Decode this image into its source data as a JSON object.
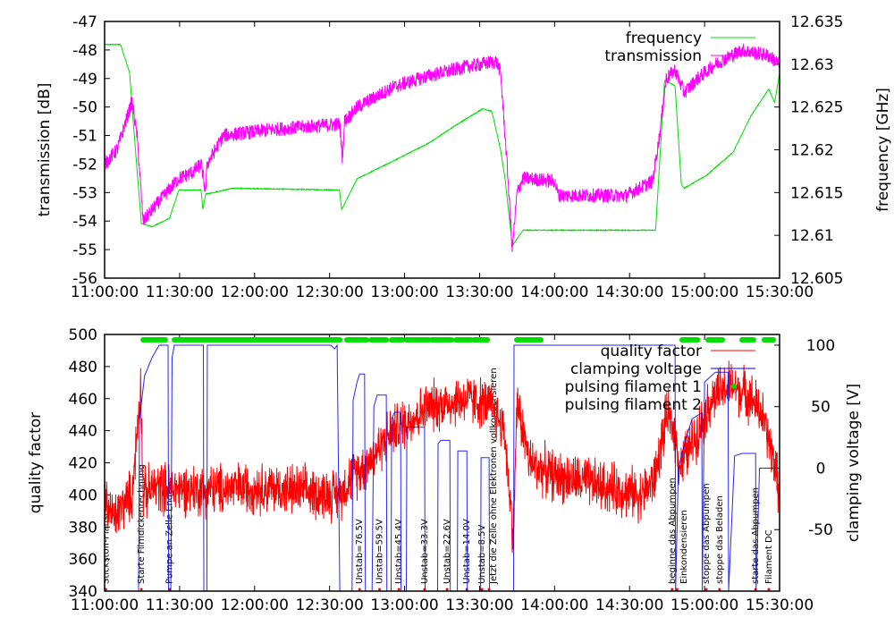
{
  "chart_data": [
    {
      "type": "line",
      "title": "",
      "x_unit": "minutes after 11:00:00",
      "xlim": [
        0,
        270
      ],
      "x_ticks": [
        "11:00:00",
        "11:30:00",
        "12:00:00",
        "12:30:00",
        "13:00:00",
        "13:30:00",
        "14:00:00",
        "14:30:00",
        "15:00:00",
        "15:30:00"
      ],
      "ylabel": "transmission [dB]",
      "ylim": [
        -56,
        -47
      ],
      "y_ticks": [
        "-47",
        "-48",
        "-49",
        "-50",
        "-51",
        "-52",
        "-53",
        "-54",
        "-55",
        "-56"
      ],
      "y2label": "frequency [GHz]",
      "y2lim": [
        12.605,
        12.635
      ],
      "y2_ticks": [
        "12.635",
        "12.63",
        "12.625",
        "12.62",
        "12.615",
        "12.61",
        "12.605"
      ],
      "legend_position": "top-right",
      "series": [
        {
          "name": "frequency",
          "axis": "y2",
          "color": "#00dd00",
          "points": [
            [
              0,
              12.6323
            ],
            [
              6.4,
              12.6323
            ],
            [
              10,
              12.629
            ],
            [
              11.8,
              12.622
            ],
            [
              14.7,
              12.6114
            ],
            [
              19,
              12.611
            ],
            [
              26,
              12.612
            ],
            [
              29.7,
              12.6153
            ],
            [
              38.6,
              12.6153
            ],
            [
              39.3,
              12.613
            ],
            [
              40.4,
              12.6148
            ],
            [
              51,
              12.6155
            ],
            [
              94,
              12.6153
            ],
            [
              94.8,
              12.613
            ],
            [
              101,
              12.6166
            ],
            [
              115.5,
              12.6187
            ],
            [
              129.8,
              12.6208
            ],
            [
              140.6,
              12.6229
            ],
            [
              151.3,
              12.6248
            ],
            [
              154.9,
              12.6245
            ],
            [
              158.4,
              12.62
            ],
            [
              160.2,
              12.6166
            ],
            [
              163.1,
              12.6088
            ],
            [
              167.4,
              12.6106
            ],
            [
              220.4,
              12.6106
            ],
            [
              224,
              12.6281
            ],
            [
              228.2,
              12.6275
            ],
            [
              230.7,
              12.616
            ],
            [
              231.8,
              12.6155
            ],
            [
              240.7,
              12.617
            ],
            [
              251.4,
              12.6197
            ],
            [
              258.6,
              12.624
            ],
            [
              265.7,
              12.6271
            ],
            [
              268,
              12.6255
            ],
            [
              270,
              12.629
            ]
          ]
        },
        {
          "name": "transmission",
          "axis": "y",
          "color": "#ff00ff",
          "points": [
            [
              0,
              -52
            ],
            [
              5,
              -51.5
            ],
            [
              11,
              -49.8
            ],
            [
              13,
              -51
            ],
            [
              15.4,
              -54
            ],
            [
              20,
              -53.5
            ],
            [
              29.7,
              -52.5
            ],
            [
              35,
              -52.3
            ],
            [
              38.6,
              -52
            ],
            [
              40.4,
              -53
            ],
            [
              41,
              -52
            ],
            [
              47.6,
              -51
            ],
            [
              65.5,
              -50.8
            ],
            [
              94.1,
              -50.6
            ],
            [
              95.1,
              -51.8
            ],
            [
              96,
              -50.5
            ],
            [
              101.2,
              -50
            ],
            [
              115.5,
              -49.3
            ],
            [
              129.8,
              -48.9
            ],
            [
              144.1,
              -48.6
            ],
            [
              156.7,
              -48.4
            ],
            [
              158.4,
              -48.8
            ],
            [
              161,
              -52
            ],
            [
              163.1,
              -55
            ],
            [
              165,
              -53
            ],
            [
              167.4,
              -52.5
            ],
            [
              179.9,
              -52.6
            ],
            [
              181.7,
              -53.1
            ],
            [
              208.5,
              -53.1
            ],
            [
              219.2,
              -52.6
            ],
            [
              222,
              -51
            ],
            [
              224.6,
              -49
            ],
            [
              228.2,
              -48.7
            ],
            [
              231.8,
              -49.5
            ],
            [
              237.2,
              -49
            ],
            [
              244.3,
              -48.5
            ],
            [
              255,
              -48
            ],
            [
              265.7,
              -48.2
            ],
            [
              270,
              -48.5
            ]
          ]
        }
      ]
    },
    {
      "type": "line",
      "title": "",
      "x_unit": "minutes after 11:00:00",
      "xlim": [
        0,
        270
      ],
      "x_ticks": [
        "11:00:00",
        "11:30:00",
        "12:00:00",
        "12:30:00",
        "13:00:00",
        "13:30:00",
        "14:00:00",
        "14:30:00",
        "15:00:00",
        "15:30:00"
      ],
      "ylabel": "quality factor",
      "ylim": [
        340,
        500
      ],
      "y_ticks": [
        "500",
        "480",
        "460",
        "440",
        "420",
        "400",
        "380",
        "360",
        "340"
      ],
      "y2label": "clamping voltage [V]",
      "y2lim": [
        -100,
        108.7
      ],
      "y2_ticks": [
        "100",
        "50",
        "0",
        "-50"
      ],
      "legend_position": "top-right",
      "series": [
        {
          "name": "quality factor",
          "axis": "y",
          "color": "#ff0000",
          "points": [
            [
              0,
              396
            ],
            [
              4,
              385
            ],
            [
              8,
              395
            ],
            [
              11,
              400
            ],
            [
              13,
              440
            ],
            [
              14.5,
              470
            ],
            [
              15.4,
              400
            ],
            [
              20,
              405
            ],
            [
              40,
              403
            ],
            [
              60,
              405
            ],
            [
              80,
              402
            ],
            [
              94,
              400
            ],
            [
              98,
              410
            ],
            [
              105,
              420
            ],
            [
              115,
              440
            ],
            [
              130,
              455
            ],
            [
              145,
              460
            ],
            [
              155,
              455
            ],
            [
              160,
              440
            ],
            [
              162,
              400
            ],
            [
              163.5,
              374
            ],
            [
              165,
              458
            ],
            [
              170,
              420
            ],
            [
              180,
              412
            ],
            [
              200,
              405
            ],
            [
              215,
              400
            ],
            [
              220,
              410
            ],
            [
              225,
              450
            ],
            [
              228,
              440
            ],
            [
              230,
              418
            ],
            [
              236,
              435
            ],
            [
              243,
              460
            ],
            [
              250,
              468
            ],
            [
              258,
              462
            ],
            [
              263,
              450
            ],
            [
              268,
              420
            ],
            [
              270,
              400
            ]
          ]
        },
        {
          "name": "clamping voltage",
          "axis": "y2",
          "color": "#0000ff",
          "points": [
            [
              0,
              -100
            ],
            [
              13.6,
              -100
            ],
            [
              14,
              40
            ],
            [
              16,
              75
            ],
            [
              19,
              90
            ],
            [
              21.8,
              100
            ],
            [
              25.4,
              100
            ],
            [
              25.6,
              -100
            ],
            [
              26.5,
              -100
            ],
            [
              27,
              90
            ],
            [
              27.9,
              100
            ],
            [
              39.5,
              100
            ],
            [
              39.7,
              -100
            ],
            [
              40.9,
              -100
            ],
            [
              41.1,
              100
            ],
            [
              90.5,
              100
            ],
            [
              92,
              97
            ],
            [
              93,
              100
            ],
            [
              94.1,
              -100
            ],
            [
              99,
              -100
            ],
            [
              99.4,
              55
            ],
            [
              101,
              70
            ],
            [
              102,
              76.5
            ],
            [
              104,
              76.5
            ],
            [
              104.3,
              -100
            ],
            [
              107,
              -100
            ],
            [
              107.7,
              50
            ],
            [
              109,
              59.5
            ],
            [
              112.7,
              59.5
            ],
            [
              112.9,
              -100
            ],
            [
              114.6,
              -100
            ],
            [
              114.8,
              40
            ],
            [
              116,
              45.4
            ],
            [
              118.4,
              45.4
            ],
            [
              118.6,
              -100
            ],
            [
              120.7,
              -100
            ],
            [
              120.9,
              33.3
            ],
            [
              128,
              33.3
            ],
            [
              128.2,
              -100
            ],
            [
              133.2,
              -100
            ],
            [
              133.4,
              20
            ],
            [
              134.5,
              22.6
            ],
            [
              138.1,
              22.6
            ],
            [
              138.3,
              -100
            ],
            [
              141.1,
              -100
            ],
            [
              141.3,
              14
            ],
            [
              144.9,
              14
            ],
            [
              145.1,
              -100
            ],
            [
              150.4,
              -100
            ],
            [
              150.6,
              8.5
            ],
            [
              153.8,
              8.5
            ],
            [
              154,
              -100
            ],
            [
              163.6,
              -100
            ],
            [
              163.8,
              100
            ],
            [
              228.2,
              100
            ],
            [
              228.4,
              -100
            ],
            [
              229.5,
              0
            ],
            [
              232,
              20
            ],
            [
              235,
              40
            ],
            [
              238.9,
              45
            ],
            [
              239.1,
              -100
            ],
            [
              240,
              70
            ],
            [
              244.3,
              78
            ],
            [
              249.4,
              78
            ],
            [
              249.6,
              -100
            ],
            [
              252,
              10
            ],
            [
              255,
              12
            ],
            [
              260.4,
              12
            ],
            [
              260.6,
              -100
            ],
            [
              262,
              0
            ],
            [
              270,
              0
            ]
          ]
        },
        {
          "name": "pulsing filament 1",
          "axis": "marker",
          "color": "#00dd00",
          "intervals": [
            [
              15.4,
              24.3
            ],
            [
              27.9,
              94.1
            ],
            [
              96.9,
              104.8
            ],
            [
              106.6,
              112.7
            ],
            [
              114.8,
              119.1
            ],
            [
              120.9,
              129.8
            ],
            [
              130.9,
              138.8
            ],
            [
              140.6,
              146.6
            ],
            [
              147.7,
              153.1
            ],
            [
              164.9,
              174.5
            ],
            [
              231,
              237.2
            ],
            [
              241.4,
              247.1
            ],
            [
              255,
              259.6
            ],
            [
              263.9,
              267.5
            ]
          ]
        },
        {
          "name": "pulsing filament 2",
          "axis": "marker",
          "color": "#00dd00",
          "intervals": []
        }
      ],
      "annotations": [
        {
          "t": 0.5,
          "text": "Stickstoff-Flansch"
        },
        {
          "t": 14.7,
          "text": "Starte Filmdickenrechnung"
        },
        {
          "t": 26,
          "text": "Pumpe an Zelle Ende"
        },
        {
          "t": 102,
          "text": "Unstab=76.5V"
        },
        {
          "t": 110,
          "text": "Unstab=59.5V"
        },
        {
          "t": 117.7,
          "text": "Unstab=45.4V"
        },
        {
          "t": 128,
          "text": "Unstab=33.3V"
        },
        {
          "t": 137,
          "text": "Unstab=22.6V"
        },
        {
          "t": 144.9,
          "text": "Unstab=14.0V"
        },
        {
          "t": 151,
          "text": "Unstab=8.5V"
        },
        {
          "t": 153.8,
          "text": "Jetzt die Zelle ohne Elektronen vollkondensieren"
        },
        {
          "t": 227,
          "text": "beginne das Abpumpen"
        },
        {
          "t": 229,
          "text": "Einkondensieren"
        },
        {
          "t": 240.7,
          "text": "stoppe das Abpumpen"
        },
        {
          "t": 246,
          "text": "stoppe das Beladen"
        },
        {
          "t": 260.4,
          "text": "starte das Abpumpen"
        },
        {
          "t": 265.7,
          "text": "Filament DC"
        }
      ]
    }
  ]
}
